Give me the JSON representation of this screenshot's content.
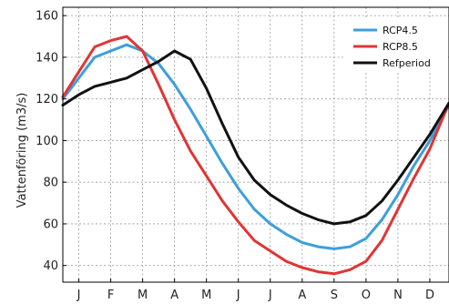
{
  "chart_data": {
    "type": "line",
    "ylabel": "Vattenföring (m3/s)",
    "xlabel": "",
    "ylim": [
      32,
      164
    ],
    "yticks": [
      40,
      60,
      80,
      100,
      120,
      140,
      160
    ],
    "xlim": [
      0.5,
      12.6
    ],
    "months": [
      "J",
      "F",
      "M",
      "A",
      "M",
      "J",
      "J",
      "A",
      "S",
      "O",
      "N",
      "D"
    ],
    "grid": true,
    "legend_position": "top-right",
    "x": [
      0.5,
      1,
      1.5,
      2,
      2.5,
      3,
      3.5,
      4,
      4.5,
      5,
      5.5,
      6,
      6.5,
      7,
      7.5,
      8,
      8.5,
      9,
      9.5,
      10,
      10.5,
      11,
      11.5,
      12,
      12.6
    ],
    "series": [
      {
        "name": "RCP4.5",
        "color": "#3d9fd9",
        "values": [
          120,
          130,
          140,
          143,
          146,
          143,
          137,
          127,
          115,
          102,
          89,
          77,
          67,
          60,
          55,
          51,
          49,
          48,
          49,
          53,
          62,
          74,
          88,
          100,
          117
        ]
      },
      {
        "name": "RCP8.5",
        "color": "#e03535",
        "values": [
          121,
          133,
          145,
          148,
          150,
          143,
          127,
          110,
          95,
          83,
          71,
          61,
          52,
          47,
          42,
          39,
          37,
          36,
          38,
          42,
          52,
          67,
          82,
          96,
          118
        ]
      },
      {
        "name": "Refperiod",
        "color": "#111111",
        "values": [
          117,
          122,
          126,
          128,
          130,
          134,
          138,
          143,
          139,
          125,
          108,
          92,
          81,
          74,
          69,
          65,
          62,
          60,
          61,
          64,
          71,
          81,
          92,
          103,
          118
        ]
      }
    ]
  }
}
